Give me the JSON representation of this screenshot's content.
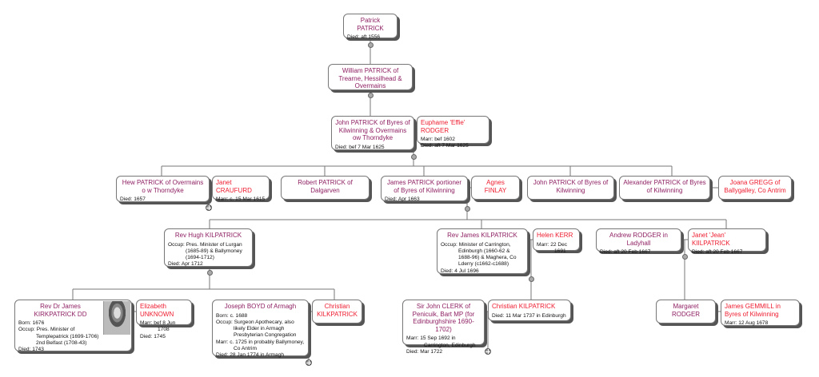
{
  "persons": {
    "patrick": {
      "name": "Patrick PATRICK",
      "role": "blood",
      "details": [
        "Died: aft 1556"
      ]
    },
    "william": {
      "name": "William PATRICK of Trearne, Hessilhead & Overmains",
      "role": "blood",
      "details": []
    },
    "john1": {
      "name": "John PATRICK of Byres of Kilwinning & Overmains ow Thorndyke",
      "role": "blood",
      "details": [
        "Died: bef 7 Mar 1625"
      ]
    },
    "euphame": {
      "name": "Euphame 'Effie' RODGER",
      "role": "spouse",
      "details": [
        "Marr: bef 1602",
        "Died: aft 7 Mar 1625"
      ]
    },
    "hew": {
      "name": "Hew PATRICK of Overmains o w Thorndyke",
      "role": "blood",
      "details": [
        "Died: 1657"
      ]
    },
    "janetc": {
      "name": "Janet CRAUFURD",
      "role": "spouse",
      "details": [
        "Marr: c. 15 Mar 1615"
      ]
    },
    "robert": {
      "name": "Robert PATRICK of Dalgarven",
      "role": "blood",
      "details": []
    },
    "james1": {
      "name": "James PATRICK portioner of Byres of Kilwinning",
      "role": "blood",
      "details": [
        "Died: Apr 1663"
      ]
    },
    "agnes": {
      "name": "Agnes FINLAY",
      "role": "spouse",
      "details": []
    },
    "john2": {
      "name": "John PATRICK of Byres of Kilwinning",
      "role": "blood",
      "details": []
    },
    "alexander": {
      "name": "Alexander PATRICK of Byres of Kilwinning",
      "role": "blood",
      "details": []
    },
    "joana": {
      "name": "Joana GREGG of Ballygalley, Co Antrim",
      "role": "spouse",
      "details": []
    },
    "hugh": {
      "name": "Rev Hugh KILPATRICK",
      "role": "blood",
      "details": [
        "Occup: Pres. Minister of Lurgan (1685-89) & Ballymoney (1694-1712)",
        "Died: Apr 1712"
      ]
    },
    "revjames": {
      "name": "Rev James KILPATRICK",
      "role": "blood",
      "details": [
        "Occup: Minister of Carrington, Edinburgh (1660-62 & 1688-96) & Maghera, Co Lderry (c1662-c1688)",
        "Died: 4 Jul 1696"
      ]
    },
    "helen": {
      "name": "Helen KERR",
      "role": "spouse",
      "details": [
        "Marr: 22 Dec 1691"
      ]
    },
    "andrew": {
      "name": "Andrew RODGER in Ladyhall",
      "role": "blood",
      "details": [
        "Died: aft 20 Feb 1667"
      ]
    },
    "janetj": {
      "name": "Janet 'Jean' KIILPATRICK",
      "role": "spouse",
      "details": [
        "Died: aft 20 Feb 1667"
      ]
    },
    "drjames": {
      "name": "Rev Dr James KIRKPATRICK DD",
      "role": "blood",
      "details": [
        "Born: 1676",
        "Occup: Pres. Minister of Templepatrick (1699-1706) 2nd Belfast (1708-43)",
        "Died: 1743"
      ],
      "portrait": "portrait-image"
    },
    "elizabeth": {
      "name": "Elizabeth UNKNOWN",
      "role": "spouse",
      "details": [
        "Marr: bef 8 Jun 1708",
        "Died: 1745"
      ]
    },
    "joseph": {
      "name": "Joseph BOYD of Armagh",
      "role": "blood",
      "details": [
        "Born: c. 1688",
        "Occup: Surgeon Apothecary, also likely Elder in Armagh Presbyterian Congregation",
        "Marr: c. 1725 in probably Ballymoney, Co Antrim",
        "Died: 28 Jan 1774 in Armagh"
      ]
    },
    "christiank": {
      "name": "Christian KILKPATRICK",
      "role": "spouse",
      "details": []
    },
    "clerk": {
      "name": "Sir John CLERK of Penicuik, Bart MP (for Edinburghshire 1690-1702)",
      "role": "blood",
      "details": [
        "Marr: 15 Sep 1692 in Carrington, Edinburgh",
        "Died: Mar 1722"
      ]
    },
    "christian2": {
      "name": "Christian KILPATRICK",
      "role": "spouse",
      "details": [
        "Died: 11 Mar 1737 in Edinburgh"
      ]
    },
    "margaret": {
      "name": "Margaret RODGER",
      "role": "blood",
      "details": []
    },
    "gemmill": {
      "name": "James GEMMILL in Byres of Kilwinning",
      "role": "spouse",
      "details": [
        "Marr: 12 Aug 1678"
      ]
    }
  },
  "colors": {
    "blood_name": "#8e1f62",
    "spouse_name": "#ee1b2e",
    "connector": "#777777"
  }
}
